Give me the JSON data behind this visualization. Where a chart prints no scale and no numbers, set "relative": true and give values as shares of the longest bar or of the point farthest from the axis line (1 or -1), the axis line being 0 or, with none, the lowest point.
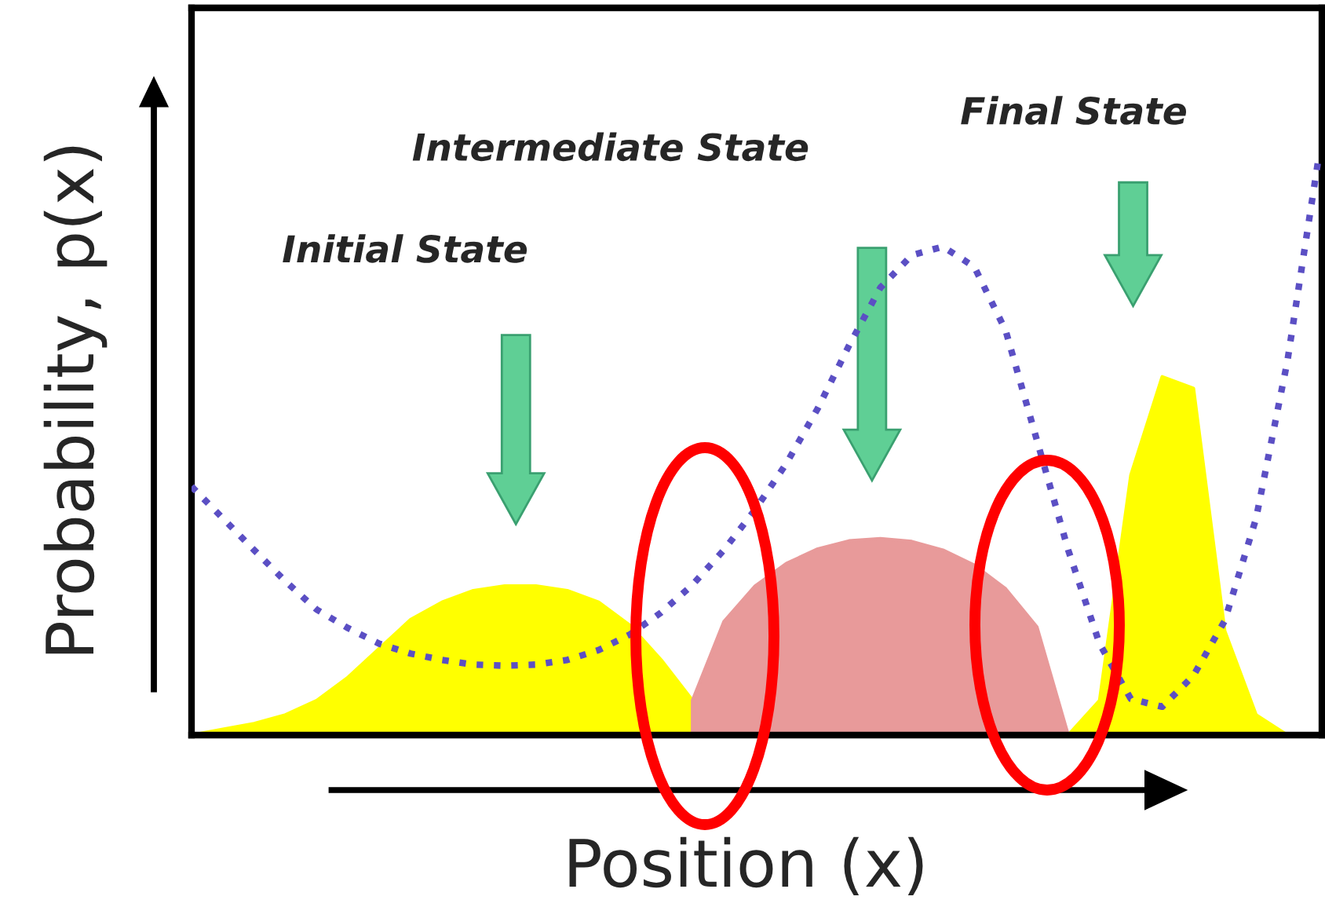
{
  "chart_data": {
    "type": "area",
    "relative": true,
    "xlabel": "Position (x)",
    "ylabel": "Probability, p(x)",
    "annotations": [
      "Initial State",
      "Intermediate State",
      "Final State"
    ],
    "categories": [
      null,
      null,
      null,
      null,
      null,
      null,
      null,
      null,
      null,
      null,
      null,
      null,
      null,
      null,
      null,
      null,
      null,
      null,
      null,
      null,
      null,
      null,
      null,
      null,
      null,
      null,
      null,
      null,
      null,
      null,
      null,
      null,
      null,
      null,
      null,
      null,
      null
    ],
    "series": [
      {
        "color": "#ffff00",
        "values": [
          0,
          0.01,
          0.02,
          0.035,
          0.06,
          0.1,
          0.15,
          0.2,
          0.23,
          0.25,
          0.258,
          0.258,
          0.25,
          0.23,
          0.19,
          0.13,
          0.06,
          0,
          0,
          0,
          0,
          0,
          0,
          0,
          0,
          0,
          0,
          0,
          0,
          0.06,
          0.45,
          0.62,
          0.6,
          0.18,
          0.035,
          0,
          0
        ]
      },
      {
        "color": "#e89a9a",
        "values": [
          null,
          null,
          null,
          null,
          null,
          null,
          null,
          null,
          null,
          null,
          null,
          null,
          null,
          null,
          null,
          null,
          0.06,
          0.196,
          0.258,
          0.297,
          0.322,
          0.336,
          0.34,
          0.335,
          0.32,
          0.294,
          0.253,
          0.187,
          0,
          null,
          null,
          null,
          null,
          null,
          null,
          null,
          null
        ]
      },
      {
        "type": "line",
        "color": "#5b4fc4",
        "line_style": "dotted",
        "values": [
          0.43,
          0.375,
          0.32,
          0.266,
          0.217,
          0.185,
          0.158,
          0.141,
          0.13,
          0.122,
          0.12,
          0.122,
          0.13,
          0.147,
          0.174,
          0.212,
          0.26,
          0.32,
          0.39,
          0.47,
          0.565,
          0.674,
          0.774,
          0.83,
          0.845,
          0.81,
          0.7,
          0.51,
          0.32,
          0.158,
          0.0625,
          0.049,
          0.103,
          0.198,
          0.375,
          0.647,
          1.0
        ]
      }
    ]
  }
}
